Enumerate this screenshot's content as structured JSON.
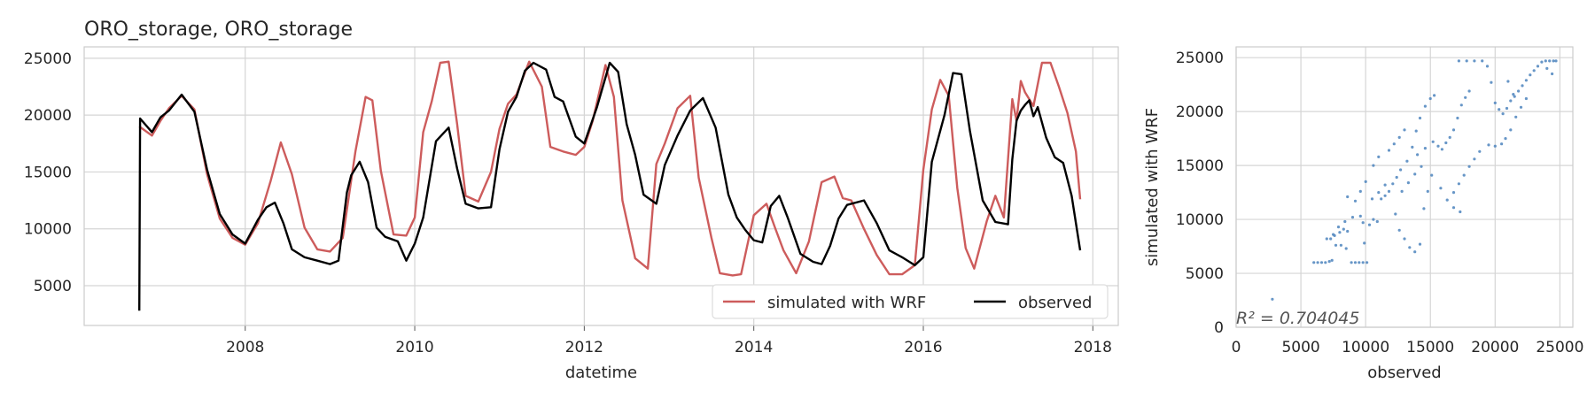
{
  "chart_data": [
    {
      "type": "line",
      "title": "ORO_storage, ORO_storage",
      "xlabel": "datetime",
      "ylabel": "",
      "xlim": [
        2006.1,
        2018.3
      ],
      "ylim": [
        1500,
        26000
      ],
      "xticks": [
        2008,
        2010,
        2012,
        2014,
        2016,
        2018
      ],
      "yticks": [
        5000,
        10000,
        15000,
        20000,
        25000
      ],
      "grid": true,
      "legend": {
        "placement": "lower-right",
        "entries": [
          "simulated with WRF",
          "observed"
        ]
      },
      "series": [
        {
          "name": "simulated with WRF",
          "color": "#cd5c5c",
          "x": [
            2006.75,
            2006.9,
            2007.0,
            2007.1,
            2007.25,
            2007.4,
            2007.55,
            2007.7,
            2007.85,
            2008.0,
            2008.15,
            2008.3,
            2008.42,
            2008.55,
            2008.7,
            2008.85,
            2009.0,
            2009.15,
            2009.3,
            2009.42,
            2009.5,
            2009.6,
            2009.75,
            2009.9,
            2010.0,
            2010.1,
            2010.2,
            2010.3,
            2010.4,
            2010.5,
            2010.6,
            2010.75,
            2010.9,
            2011.0,
            2011.1,
            2011.2,
            2011.35,
            2011.5,
            2011.6,
            2011.75,
            2011.9,
            2012.0,
            2012.1,
            2012.25,
            2012.35,
            2012.45,
            2012.6,
            2012.75,
            2012.85,
            2012.95,
            2013.1,
            2013.25,
            2013.35,
            2013.5,
            2013.6,
            2013.75,
            2013.85,
            2014.0,
            2014.15,
            2014.25,
            2014.35,
            2014.5,
            2014.65,
            2014.8,
            2014.95,
            2015.05,
            2015.15,
            2015.3,
            2015.45,
            2015.6,
            2015.75,
            2015.9,
            2016.0,
            2016.1,
            2016.2,
            2016.3,
            2016.4,
            2016.5,
            2016.6,
            2016.75,
            2016.85,
            2016.95,
            2017.05,
            2017.1,
            2017.15,
            2017.2,
            2017.3,
            2017.4,
            2017.5,
            2017.6,
            2017.7,
            2017.8,
            2017.85
          ],
          "values": [
            19000,
            18200,
            19500,
            20600,
            21700,
            20500,
            14800,
            10900,
            9200,
            8600,
            10500,
            14200,
            17600,
            14800,
            10100,
            8200,
            8000,
            9200,
            16800,
            21600,
            21300,
            15100,
            9500,
            9400,
            11000,
            18500,
            21200,
            24600,
            24700,
            19200,
            12900,
            12400,
            15000,
            18800,
            21000,
            21800,
            24700,
            22500,
            17200,
            16800,
            16500,
            17200,
            19500,
            24400,
            21600,
            12500,
            7400,
            6500,
            15700,
            17500,
            20600,
            21700,
            14500,
            9200,
            6100,
            5900,
            6000,
            11200,
            12200,
            10100,
            8100,
            6100,
            8900,
            14100,
            14600,
            12700,
            12500,
            10000,
            7700,
            6000,
            6000,
            6800,
            15200,
            20500,
            23100,
            21700,
            13600,
            8300,
            6500,
            10700,
            12900,
            11000,
            21400,
            19500,
            23000,
            22000,
            20800,
            24600,
            24600,
            22500,
            20200,
            16800,
            12600
          ]
        },
        {
          "name": "observed",
          "color": "#000000",
          "x": [
            2006.75,
            2006.76,
            2006.9,
            2007.0,
            2007.1,
            2007.25,
            2007.4,
            2007.55,
            2007.7,
            2007.85,
            2008.0,
            2008.15,
            2008.25,
            2008.35,
            2008.45,
            2008.55,
            2008.7,
            2008.85,
            2009.0,
            2009.1,
            2009.2,
            2009.25,
            2009.35,
            2009.45,
            2009.55,
            2009.65,
            2009.8,
            2009.9,
            2010.0,
            2010.1,
            2010.25,
            2010.4,
            2010.5,
            2010.6,
            2010.75,
            2010.9,
            2011.0,
            2011.1,
            2011.2,
            2011.3,
            2011.4,
            2011.55,
            2011.65,
            2011.75,
            2011.9,
            2012.0,
            2012.15,
            2012.3,
            2012.4,
            2012.5,
            2012.6,
            2012.7,
            2012.85,
            2012.95,
            2013.1,
            2013.25,
            2013.4,
            2013.55,
            2013.7,
            2013.8,
            2013.9,
            2014.0,
            2014.1,
            2014.2,
            2014.3,
            2014.4,
            2014.55,
            2014.7,
            2014.8,
            2014.9,
            2015.0,
            2015.1,
            2015.3,
            2015.45,
            2015.6,
            2015.75,
            2015.9,
            2016.0,
            2016.1,
            2016.25,
            2016.35,
            2016.45,
            2016.55,
            2016.7,
            2016.85,
            2017.0,
            2017.05,
            2017.1,
            2017.15,
            2017.2,
            2017.25,
            2017.3,
            2017.35,
            2017.45,
            2017.55,
            2017.65,
            2017.75,
            2017.85
          ],
          "values": [
            2800,
            19700,
            18500,
            19800,
            20400,
            21800,
            20300,
            15200,
            11300,
            9500,
            8700,
            10800,
            11900,
            12300,
            10500,
            8200,
            7500,
            7200,
            6900,
            7200,
            13200,
            14700,
            15900,
            14100,
            10100,
            9300,
            8900,
            7200,
            8700,
            11000,
            17700,
            18900,
            15300,
            12200,
            11800,
            11900,
            17000,
            20300,
            21600,
            23900,
            24600,
            24000,
            21600,
            21200,
            18100,
            17500,
            20700,
            24600,
            23800,
            19200,
            16500,
            13000,
            12200,
            15600,
            18200,
            20400,
            21500,
            18900,
            13000,
            11000,
            9900,
            9000,
            8800,
            12000,
            12900,
            11000,
            7800,
            7100,
            6900,
            8500,
            10900,
            12100,
            12500,
            10500,
            8100,
            7500,
            6800,
            7500,
            15900,
            20000,
            23700,
            23600,
            18600,
            12500,
            10600,
            10400,
            16100,
            19500,
            20400,
            20900,
            21300,
            19900,
            20700,
            18000,
            16300,
            15800,
            12900,
            8100
          ]
        }
      ]
    },
    {
      "type": "scatter",
      "title": "",
      "xlabel": "observed",
      "ylabel": "simulated with WRF",
      "xlim": [
        0,
        26000
      ],
      "ylim": [
        0,
        26000
      ],
      "xticks": [
        0,
        5000,
        10000,
        15000,
        20000,
        25000
      ],
      "yticks": [
        0,
        5000,
        10000,
        15000,
        20000,
        25000
      ],
      "grid": true,
      "color": "#4c84bd",
      "annotation": "R² = 0.704045",
      "points": [
        [
          2800,
          2600
        ],
        [
          6000,
          6000
        ],
        [
          6300,
          6000
        ],
        [
          6600,
          6000
        ],
        [
          6900,
          6000
        ],
        [
          7200,
          6100
        ],
        [
          7400,
          6200
        ],
        [
          7300,
          8200
        ],
        [
          7600,
          8500
        ],
        [
          7700,
          7600
        ],
        [
          8000,
          8800
        ],
        [
          8300,
          9100
        ],
        [
          8600,
          8900
        ],
        [
          8900,
          6000
        ],
        [
          9200,
          6000
        ],
        [
          9500,
          6000
        ],
        [
          9800,
          6000
        ],
        [
          10100,
          6000
        ],
        [
          9900,
          7800
        ],
        [
          10300,
          9500
        ],
        [
          10600,
          10000
        ],
        [
          10900,
          9800
        ],
        [
          11200,
          11900
        ],
        [
          11500,
          12200
        ],
        [
          11800,
          12600
        ],
        [
          12100,
          13300
        ],
        [
          12400,
          13900
        ],
        [
          12700,
          14600
        ],
        [
          12300,
          10500
        ],
        [
          12600,
          9000
        ],
        [
          13000,
          8200
        ],
        [
          13400,
          7400
        ],
        [
          13800,
          7000
        ],
        [
          14200,
          7700
        ],
        [
          14500,
          11000
        ],
        [
          14800,
          12600
        ],
        [
          15100,
          14100
        ],
        [
          13200,
          15400
        ],
        [
          13600,
          16700
        ],
        [
          13900,
          18200
        ],
        [
          14200,
          19400
        ],
        [
          14600,
          20500
        ],
        [
          15000,
          21200
        ],
        [
          15300,
          21500
        ],
        [
          15600,
          16800
        ],
        [
          15900,
          16500
        ],
        [
          16200,
          17100
        ],
        [
          16500,
          17600
        ],
        [
          16800,
          18300
        ],
        [
          17100,
          19400
        ],
        [
          17400,
          20600
        ],
        [
          17700,
          21300
        ],
        [
          18000,
          21900
        ],
        [
          16800,
          12500
        ],
        [
          17200,
          13300
        ],
        [
          17600,
          14100
        ],
        [
          18000,
          14900
        ],
        [
          18400,
          15600
        ],
        [
          18800,
          16300
        ],
        [
          17200,
          24700
        ],
        [
          17800,
          24700
        ],
        [
          18400,
          24700
        ],
        [
          19000,
          24700
        ],
        [
          19400,
          24200
        ],
        [
          19700,
          22700
        ],
        [
          20000,
          20800
        ],
        [
          20300,
          20200
        ],
        [
          20600,
          19800
        ],
        [
          20900,
          20300
        ],
        [
          21200,
          21000
        ],
        [
          21500,
          21400
        ],
        [
          21800,
          21900
        ],
        [
          22100,
          22400
        ],
        [
          22400,
          22900
        ],
        [
          22700,
          23400
        ],
        [
          23000,
          23800
        ],
        [
          23300,
          24200
        ],
        [
          23600,
          24600
        ],
        [
          23900,
          24700
        ],
        [
          24200,
          24700
        ],
        [
          24500,
          24700
        ],
        [
          19500,
          16900
        ],
        [
          20000,
          16800
        ],
        [
          20500,
          17000
        ],
        [
          20800,
          17500
        ],
        [
          21200,
          18300
        ],
        [
          21600,
          19500
        ],
        [
          22000,
          20400
        ],
        [
          22400,
          21200
        ],
        [
          21000,
          22800
        ],
        [
          21400,
          21600
        ],
        [
          15800,
          12900
        ],
        [
          16300,
          11800
        ],
        [
          16800,
          11100
        ],
        [
          17300,
          10700
        ],
        [
          12800,
          12600
        ],
        [
          13300,
          13400
        ],
        [
          13800,
          14200
        ],
        [
          14300,
          14900
        ],
        [
          10500,
          11900
        ],
        [
          11000,
          12500
        ],
        [
          11500,
          13200
        ],
        [
          9600,
          10300
        ],
        [
          9800,
          9700
        ],
        [
          7900,
          9300
        ],
        [
          8400,
          9800
        ],
        [
          9000,
          10200
        ],
        [
          11800,
          16400
        ],
        [
          12200,
          17000
        ],
        [
          12600,
          17600
        ],
        [
          13000,
          18300
        ],
        [
          11000,
          15800
        ],
        [
          10600,
          15000
        ],
        [
          14000,
          16000
        ],
        [
          14600,
          16600
        ],
        [
          15200,
          17200
        ],
        [
          9200,
          11700
        ],
        [
          9600,
          12600
        ],
        [
          10000,
          13500
        ],
        [
          8600,
          12100
        ],
        [
          24000,
          24000
        ],
        [
          24400,
          23500
        ],
        [
          24700,
          24700
        ],
        [
          7000,
          8200
        ],
        [
          7500,
          8600
        ],
        [
          8100,
          7600
        ],
        [
          8500,
          7300
        ]
      ]
    }
  ]
}
